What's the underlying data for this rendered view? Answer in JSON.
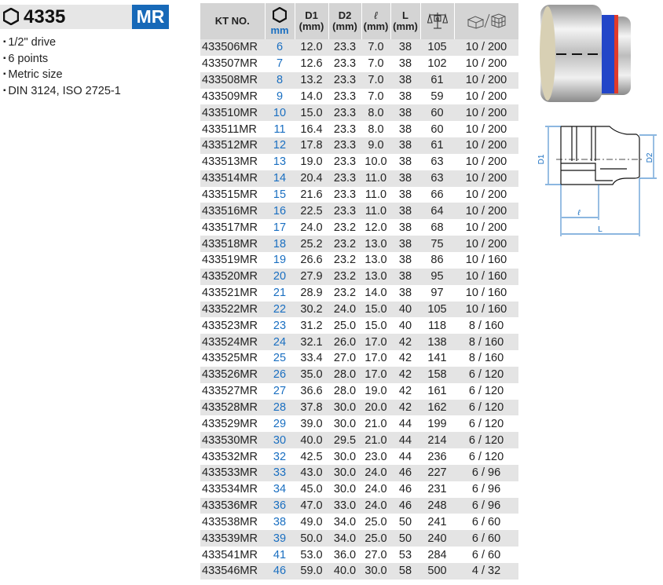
{
  "header": {
    "model": "4335",
    "badge": "MR"
  },
  "features": [
    "1/2\" drive",
    "6 points",
    "Metric size",
    "DIN 3124, ISO 2725-1"
  ],
  "table": {
    "columns": {
      "kt": "KT NO.",
      "mm": "mm",
      "d1": "D1",
      "d2": "D2",
      "l": "ℓ",
      "L": "L",
      "unit": "(mm)"
    },
    "rows": [
      [
        "433506MR",
        "6",
        "12.0",
        "23.3",
        "7.0",
        "38",
        "105",
        "10 / 200"
      ],
      [
        "433507MR",
        "7",
        "12.6",
        "23.3",
        "7.0",
        "38",
        "102",
        "10 / 200"
      ],
      [
        "433508MR",
        "8",
        "13.2",
        "23.3",
        "7.0",
        "38",
        "61",
        "10 / 200"
      ],
      [
        "433509MR",
        "9",
        "14.0",
        "23.3",
        "7.0",
        "38",
        "59",
        "10 / 200"
      ],
      [
        "433510MR",
        "10",
        "15.0",
        "23.3",
        "8.0",
        "38",
        "60",
        "10 / 200"
      ],
      [
        "433511MR",
        "11",
        "16.4",
        "23.3",
        "8.0",
        "38",
        "60",
        "10 / 200"
      ],
      [
        "433512MR",
        "12",
        "17.8",
        "23.3",
        "9.0",
        "38",
        "61",
        "10 / 200"
      ],
      [
        "433513MR",
        "13",
        "19.0",
        "23.3",
        "10.0",
        "38",
        "63",
        "10 / 200"
      ],
      [
        "433514MR",
        "14",
        "20.4",
        "23.3",
        "11.0",
        "38",
        "63",
        "10 / 200"
      ],
      [
        "433515MR",
        "15",
        "21.6",
        "23.3",
        "11.0",
        "38",
        "66",
        "10 / 200"
      ],
      [
        "433516MR",
        "16",
        "22.5",
        "23.3",
        "11.0",
        "38",
        "64",
        "10 / 200"
      ],
      [
        "433517MR",
        "17",
        "24.0",
        "23.2",
        "12.0",
        "38",
        "68",
        "10 / 200"
      ],
      [
        "433518MR",
        "18",
        "25.2",
        "23.2",
        "13.0",
        "38",
        "75",
        "10 / 200"
      ],
      [
        "433519MR",
        "19",
        "26.6",
        "23.2",
        "13.0",
        "38",
        "86",
        "10 / 160"
      ],
      [
        "433520MR",
        "20",
        "27.9",
        "23.2",
        "13.0",
        "38",
        "95",
        "10 / 160"
      ],
      [
        "433521MR",
        "21",
        "28.9",
        "23.2",
        "14.0",
        "38",
        "97",
        "10 / 160"
      ],
      [
        "433522MR",
        "22",
        "30.2",
        "24.0",
        "15.0",
        "40",
        "105",
        "10 / 160"
      ],
      [
        "433523MR",
        "23",
        "31.2",
        "25.0",
        "15.0",
        "40",
        "118",
        "8 / 160"
      ],
      [
        "433524MR",
        "24",
        "32.1",
        "26.0",
        "17.0",
        "42",
        "138",
        "8 / 160"
      ],
      [
        "433525MR",
        "25",
        "33.4",
        "27.0",
        "17.0",
        "42",
        "141",
        "8 / 160"
      ],
      [
        "433526MR",
        "26",
        "35.0",
        "28.0",
        "17.0",
        "42",
        "158",
        "6 / 120"
      ],
      [
        "433527MR",
        "27",
        "36.6",
        "28.0",
        "19.0",
        "42",
        "161",
        "6 / 120"
      ],
      [
        "433528MR",
        "28",
        "37.8",
        "30.0",
        "20.0",
        "42",
        "162",
        "6 / 120"
      ],
      [
        "433529MR",
        "29",
        "39.0",
        "30.0",
        "21.0",
        "44",
        "199",
        "6 / 120"
      ],
      [
        "433530MR",
        "30",
        "40.0",
        "29.5",
        "21.0",
        "44",
        "214",
        "6 / 120"
      ],
      [
        "433532MR",
        "32",
        "42.5",
        "30.0",
        "23.0",
        "44",
        "236",
        "6 / 120"
      ],
      [
        "433533MR",
        "33",
        "43.0",
        "30.0",
        "24.0",
        "46",
        "227",
        "6 / 96"
      ],
      [
        "433534MR",
        "34",
        "45.0",
        "30.0",
        "24.0",
        "46",
        "231",
        "6 / 96"
      ],
      [
        "433536MR",
        "36",
        "47.0",
        "33.0",
        "24.0",
        "46",
        "248",
        "6 / 96"
      ],
      [
        "433538MR",
        "38",
        "49.0",
        "34.0",
        "25.0",
        "50",
        "241",
        "6 / 60"
      ],
      [
        "433539MR",
        "39",
        "50.0",
        "34.0",
        "25.0",
        "50",
        "240",
        "6 / 60"
      ],
      [
        "433541MR",
        "41",
        "53.0",
        "36.0",
        "27.0",
        "53",
        "284",
        "6 / 60"
      ],
      [
        "433546MR",
        "46",
        "59.0",
        "40.0",
        "30.0",
        "58",
        "500",
        "4 / 32"
      ]
    ]
  },
  "drawing": {
    "d1": "D1",
    "d2": "D2",
    "l": "ℓ",
    "L": "L"
  },
  "colors": {
    "badge": "#1769b8",
    "size": "#1a6fc1",
    "dimension": "#1a6fc1",
    "stripe": "#e4e4e4",
    "header": "#d4d4d4"
  }
}
